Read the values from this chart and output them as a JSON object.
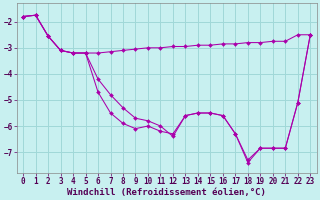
{
  "background_color": "#c8f0f0",
  "grid_color": "#a0d8d8",
  "line_color": "#aa00aa",
  "xlabel": "Windchill (Refroidissement éolien,°C)",
  "xlabel_fontsize": 6.5,
  "tick_fontsize": 5.5,
  "ylim": [
    -7.8,
    -1.3
  ],
  "xlim": [
    -0.5,
    23.5
  ],
  "yticks": [
    -7,
    -6,
    -5,
    -4,
    -3,
    -2
  ],
  "xticks": [
    0,
    1,
    2,
    3,
    4,
    5,
    6,
    7,
    8,
    9,
    10,
    11,
    12,
    13,
    14,
    15,
    16,
    17,
    18,
    19,
    20,
    21,
    22,
    23
  ],
  "line1_x": [
    0,
    1,
    2,
    3,
    4,
    5,
    6,
    7,
    8,
    9,
    10,
    11,
    12,
    13,
    14,
    15,
    16,
    17,
    18,
    19,
    20,
    21,
    22,
    23
  ],
  "line1_y": [
    -1.8,
    -1.75,
    -2.55,
    -3.1,
    -3.2,
    -3.2,
    -3.2,
    -3.15,
    -3.1,
    -3.05,
    -3.0,
    -3.0,
    -2.95,
    -2.95,
    -2.9,
    -2.9,
    -2.85,
    -2.85,
    -2.8,
    -2.8,
    -2.75,
    -2.75,
    -2.5,
    -2.5
  ],
  "line2_x": [
    0,
    1,
    2,
    3,
    4,
    5,
    6,
    7,
    8,
    9,
    10,
    11,
    12,
    13,
    14,
    15,
    16,
    17,
    18,
    19,
    20,
    21,
    22,
    23
  ],
  "line2_y": [
    -1.8,
    -1.75,
    -2.55,
    -3.1,
    -3.2,
    -3.2,
    -4.7,
    -5.5,
    -5.9,
    -6.1,
    -6.0,
    -6.2,
    -6.3,
    -5.6,
    -5.5,
    -5.5,
    -5.6,
    -6.3,
    -7.4,
    -6.85,
    -6.85,
    -6.85,
    -5.1,
    -2.5
  ],
  "line3_x": [
    0,
    1,
    2,
    3,
    4,
    5,
    6,
    7,
    8,
    9,
    10,
    11,
    12,
    13,
    14,
    15,
    16,
    17,
    18,
    19,
    20,
    21,
    22,
    23
  ],
  "line3_y": [
    -1.8,
    -1.75,
    -2.55,
    -3.1,
    -3.2,
    -3.2,
    -4.2,
    -4.8,
    -5.3,
    -5.7,
    -5.8,
    -6.0,
    -6.4,
    -5.6,
    -5.5,
    -5.5,
    -5.6,
    -6.3,
    -7.3,
    -6.85,
    -6.85,
    -6.85,
    -5.1,
    -2.5
  ]
}
